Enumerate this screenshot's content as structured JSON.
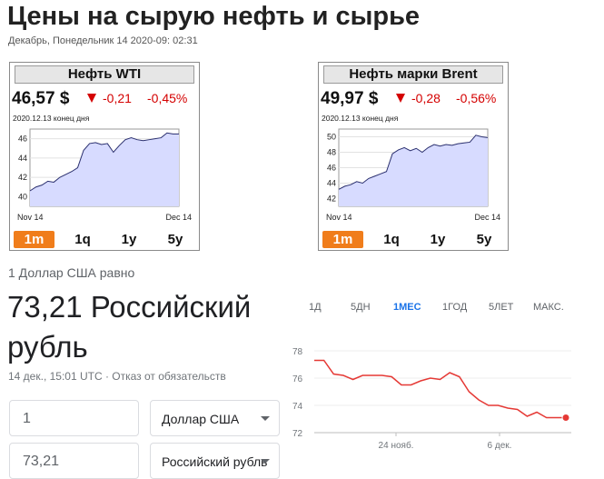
{
  "page": {
    "title": "Цены на сырую нефть и сырье",
    "date_line": "Декабрь, Понедельник 14 2020-09: 02:31"
  },
  "colors": {
    "down": "#d40000",
    "range_active": "#f07d1b",
    "mini_fill": "#d7dbff",
    "mini_line": "#2a2f6e",
    "rub_line": "#e53935",
    "tab_active": "#1a73e8"
  },
  "wti": {
    "title": "Нефть WTI",
    "price": "46,57 $",
    "change": "-0,21",
    "change_pct": "-0,45%",
    "asof": "2020.12.13 конец дня",
    "chart_data": {
      "type": "area",
      "x_labels": [
        "Nov 14",
        "Dec 14"
      ],
      "y_ticks": [
        40,
        42,
        44,
        46
      ],
      "ylim": [
        39,
        47
      ],
      "values": [
        40.6,
        41.0,
        41.2,
        41.6,
        41.5,
        42.0,
        42.3,
        42.6,
        43.0,
        44.8,
        45.5,
        45.6,
        45.4,
        45.5,
        44.6,
        45.3,
        45.9,
        46.1,
        45.9,
        45.8,
        45.9,
        46.0,
        46.1,
        46.6,
        46.5,
        46.5
      ]
    },
    "ranges": [
      "1m",
      "1q",
      "1y",
      "5y"
    ]
  },
  "brent": {
    "title": "Нефть марки Brent",
    "price": "49,97 $",
    "change": "-0,28",
    "change_pct": "-0,56%",
    "asof": "2020.12.13 конец дня",
    "chart_data": {
      "type": "area",
      "x_labels": [
        "Nov 14",
        "Dec 14"
      ],
      "y_ticks": [
        42,
        44,
        46,
        48,
        50
      ],
      "ylim": [
        41,
        51
      ],
      "values": [
        43.2,
        43.6,
        43.8,
        44.2,
        44.0,
        44.6,
        44.9,
        45.2,
        45.5,
        47.8,
        48.3,
        48.6,
        48.2,
        48.5,
        48.0,
        48.6,
        49.0,
        48.8,
        49.0,
        48.9,
        49.1,
        49.2,
        49.3,
        50.2,
        50.0,
        49.9
      ]
    },
    "ranges": [
      "1m",
      "1q",
      "1y",
      "5y"
    ]
  },
  "converter": {
    "label": "1 Доллар США равно",
    "value": "73,21 Российский рубль",
    "meta": "14 дек., 15:01 UTC · Отказ от обязательств",
    "tabs": [
      "1Д",
      "5ДН",
      "1МЕС",
      "1ГОД",
      "5ЛЕТ",
      "МАКС."
    ],
    "active_tab": "1МЕС",
    "amount_from": "1",
    "currency_from": "Доллар США",
    "amount_to": "73,21",
    "currency_to": "Российский рубль",
    "chart_data": {
      "type": "line",
      "y_ticks": [
        72,
        74,
        76,
        78
      ],
      "ylim": [
        72,
        78
      ],
      "x_labels": [
        "24 нояб.",
        "6 дек."
      ],
      "values": [
        77.3,
        77.3,
        76.3,
        76.2,
        75.9,
        76.2,
        76.2,
        76.2,
        76.1,
        75.5,
        75.5,
        75.8,
        76.0,
        75.9,
        76.4,
        76.1,
        75.0,
        74.4,
        74.0,
        74.0,
        73.8,
        73.7,
        73.2,
        73.5,
        73.1,
        73.1,
        73.1
      ]
    }
  }
}
